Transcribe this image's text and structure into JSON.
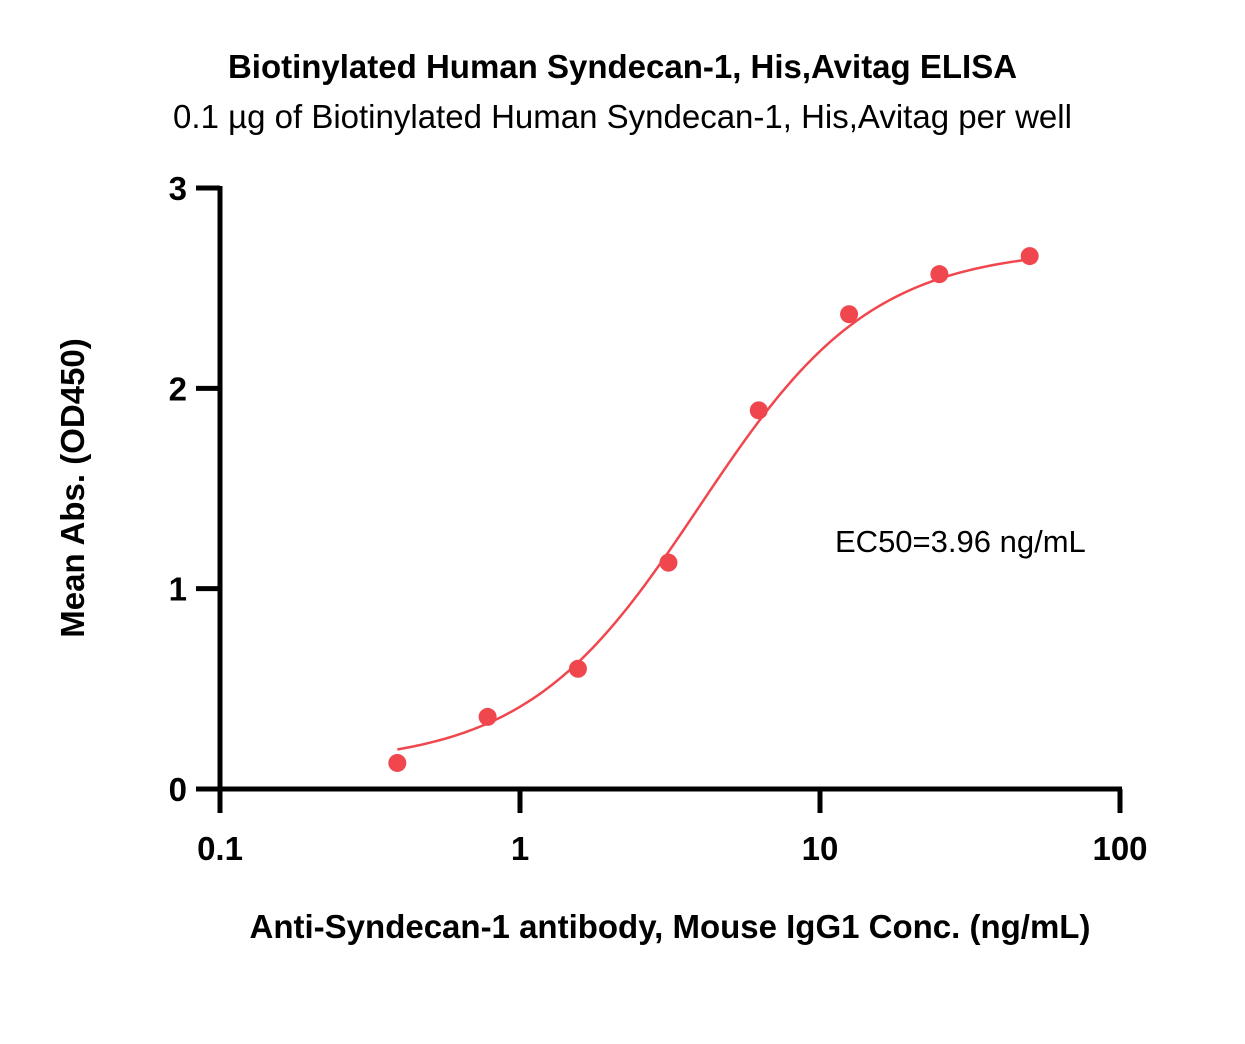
{
  "chart_data": {
    "type": "scatter",
    "title": "Biotinylated Human Syndecan-1, His,Avitag ELISA",
    "subtitle": "0.1 µg of Biotinylated Human Syndecan-1, His,Avitag per well",
    "xlabel": "Anti-Syndecan-1 antibody, Mouse IgG1 Conc. (ng/mL)",
    "ylabel": "Mean Abs. (OD450)",
    "xscale": "log",
    "xlim": [
      0.1,
      100
    ],
    "ylim": [
      0,
      3
    ],
    "xticks": [
      0.1,
      1,
      10,
      100
    ],
    "xtick_labels": [
      "0.1",
      "1",
      "10",
      "100"
    ],
    "yticks": [
      0,
      1,
      2,
      3
    ],
    "ytick_labels": [
      "0",
      "1",
      "2",
      "3"
    ],
    "grid": false,
    "annotation": "EC50=3.96 ng/mL",
    "series": [
      {
        "color": "#f0474f",
        "x": [
          0.39,
          0.78,
          1.56,
          3.125,
          6.25,
          12.5,
          25,
          50
        ],
        "y": [
          0.13,
          0.36,
          0.6,
          1.13,
          1.89,
          2.37,
          2.57,
          2.66
        ],
        "fit": {
          "model": "4PL",
          "bottom": 0.12,
          "top": 2.7,
          "ec50": 3.96,
          "hill": 1.5,
          "x_range": [
            0.39,
            50
          ]
        }
      }
    ]
  }
}
